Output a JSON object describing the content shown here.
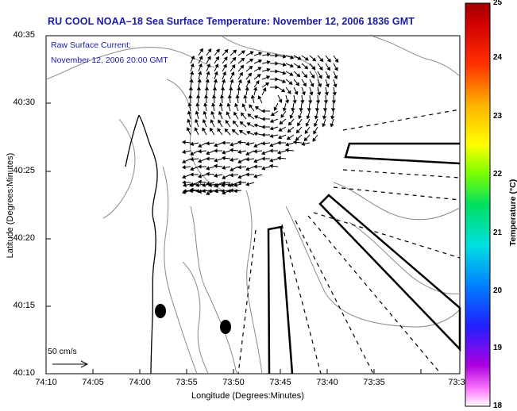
{
  "title": "RU COOL  NOAA–18  Sea Surface Temperature:  November 12, 2006 1836 GMT",
  "annotation": {
    "line1": "Raw Surface Current:",
    "line2": "November 12, 2006 20:00 GMT"
  },
  "scale": {
    "label": "50 cm/s"
  },
  "axes": {
    "xlabel": "Longitude (Degrees:Minutes)",
    "ylabel": "Latitude (Degrees:Minutes)",
    "x_ticks": [
      "74:10",
      "74:05",
      "74:00",
      "73:55",
      "73:50",
      "73:45",
      "73:40",
      "73:35",
      "73:3"
    ],
    "y_ticks": [
      "40:35",
      "40:30",
      "40:25",
      "40:20",
      "40:15",
      "40:10"
    ]
  },
  "colorbar": {
    "title": "Temperature (°C)",
    "labels": [
      "25",
      "24",
      "23",
      "22",
      "21",
      "20",
      "19",
      "18"
    ],
    "range": [
      18,
      25
    ]
  },
  "colors": {
    "title_text": "#1a1aa8",
    "contour": "#8a8a8a",
    "land_outline": "#000000"
  }
}
